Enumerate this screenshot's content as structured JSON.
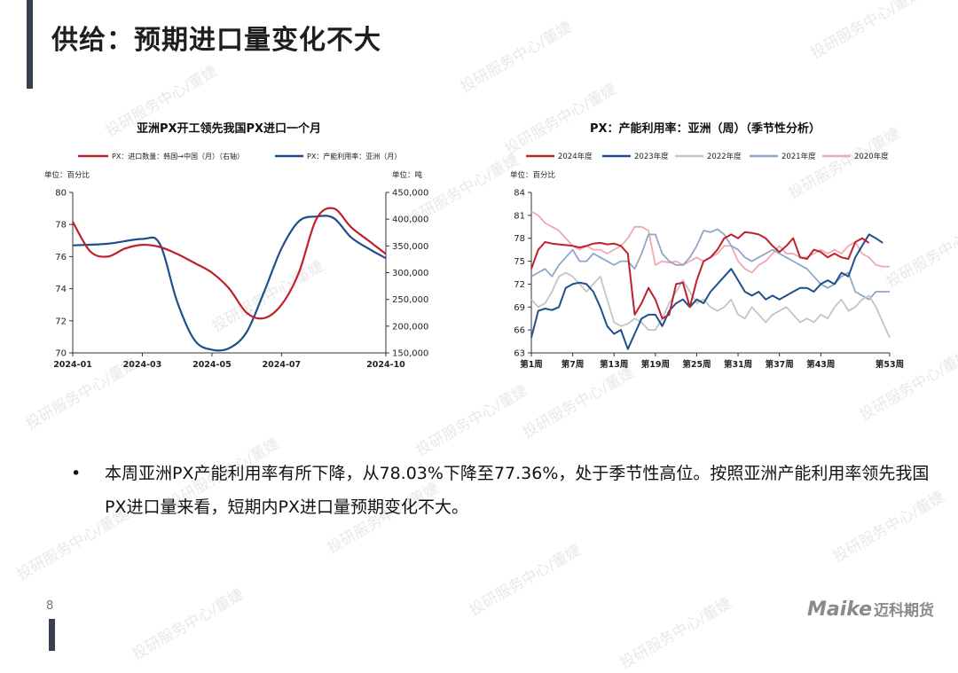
{
  "page": {
    "title": "供给：预期进口量变化不大",
    "page_number": "8",
    "bullet_symbol": "•",
    "bullet_text": "本周亚洲PX产能利用率有所下降，从78.03%下降至77.36%，处于季节性高位。按照亚洲产能利用率领先我国PX进口量来看，短期内PX进口量预期变化不大。",
    "logo": {
      "word": "Maike",
      "cn": "迈科期货"
    },
    "watermark": "投研服务中心/董婕"
  },
  "chart_data": [
    {
      "type": "line",
      "title": "亚洲PX开工领先我国PX进口一个月",
      "left_unit": "单位：百分比",
      "right_unit": "单位：吨",
      "x_ticks": [
        "2024-01",
        "2024-03",
        "2024-05",
        "2024-07",
        "2024-10"
      ],
      "x_range": [
        0,
        9
      ],
      "ylim_left": [
        70,
        80
      ],
      "ylim_right": [
        150000,
        450000
      ],
      "left_ticks": [
        70,
        72,
        74,
        76,
        78,
        80
      ],
      "right_ticks": [
        "150,000",
        "200,000",
        "250,000",
        "300,000",
        "350,000",
        "400,000",
        "450,000"
      ],
      "colors": {
        "import": "#c0202a",
        "utilization": "#1f4e8c"
      },
      "series": [
        {
          "name": "PX：进口数量：韩国→中国（月）（右轴）",
          "axis": "right",
          "color": "#c0202a",
          "x": [
            0,
            0.5,
            1,
            1.5,
            2,
            2.5,
            3,
            3.5,
            4,
            4.5,
            5,
            5.5,
            6,
            6.5,
            7,
            7.5,
            8,
            8.5,
            9
          ],
          "y": [
            395000,
            340000,
            330000,
            345000,
            352000,
            348000,
            335000,
            318000,
            300000,
            270000,
            225000,
            215000,
            240000,
            300000,
            400000,
            420000,
            385000,
            360000,
            335000
          ]
        },
        {
          "name": "PX：产能利用率：亚洲（月）",
          "axis": "left",
          "color": "#1f4e8c",
          "x": [
            0,
            1,
            2,
            2.5,
            3,
            3.5,
            4,
            4.5,
            5,
            5.5,
            6,
            6.5,
            7,
            7.5,
            8,
            8.5,
            9
          ],
          "y": [
            76.7,
            76.8,
            77.1,
            76.8,
            73.2,
            70.8,
            70.2,
            70.3,
            71.3,
            73.8,
            76.5,
            78.2,
            78.5,
            78.4,
            77.2,
            76.5,
            75.9
          ]
        }
      ]
    },
    {
      "type": "line",
      "title": "PX：产能利用率：亚洲（周）（季节性分析）",
      "left_unit": "单位：百分比",
      "x_ticks": [
        "第1周",
        "第7周",
        "第13周",
        "第19周",
        "第25周",
        "第31周",
        "第37周",
        "第43周",
        "第53周"
      ],
      "x_tick_weeks": [
        1,
        7,
        13,
        19,
        25,
        31,
        37,
        43,
        53
      ],
      "ylim": [
        63,
        84
      ],
      "y_ticks": [
        63,
        66,
        69,
        72,
        75,
        78,
        81,
        84
      ],
      "series": [
        {
          "name": "2024年度",
          "color": "#c0202a",
          "x": [
            1,
            2,
            3,
            4,
            5,
            7,
            8,
            9,
            10,
            11,
            12,
            13,
            14,
            15,
            16,
            17,
            18,
            19,
            20,
            21,
            22,
            23,
            24,
            25,
            26,
            27,
            28,
            29,
            30,
            31,
            32,
            33,
            34,
            35,
            36,
            37,
            38,
            39,
            40,
            41,
            42,
            43,
            44,
            45,
            46,
            47,
            48,
            49,
            50
          ],
          "y": [
            74.0,
            76.5,
            77.5,
            77.3,
            77.2,
            77.0,
            76.8,
            77.0,
            77.3,
            77.4,
            77.2,
            77.3,
            77.0,
            76.0,
            68.0,
            69.5,
            71.5,
            70.0,
            67.5,
            68.0,
            72.0,
            72.2,
            69.0,
            72.5,
            75.0,
            75.5,
            76.5,
            78.0,
            78.5,
            78.0,
            78.8,
            78.7,
            78.5,
            78.0,
            77.0,
            76.2,
            77.0,
            78.0,
            75.5,
            75.3,
            76.5,
            76.2,
            75.5,
            76.0,
            75.5,
            75.3,
            77.5,
            78.0,
            77.4
          ]
        },
        {
          "name": "2023年度",
          "color": "#1f4e8c",
          "x": [
            1,
            2,
            3,
            4,
            5,
            6,
            7,
            8,
            9,
            10,
            11,
            12,
            13,
            14,
            15,
            16,
            17,
            18,
            19,
            20,
            21,
            22,
            23,
            24,
            25,
            26,
            27,
            28,
            29,
            30,
            31,
            32,
            33,
            34,
            35,
            36,
            37,
            38,
            39,
            40,
            41,
            42,
            43,
            44,
            45,
            46,
            47,
            48,
            49,
            50,
            51,
            52
          ],
          "y": [
            65.0,
            68.5,
            68.8,
            68.6,
            69.0,
            71.5,
            72.0,
            72.2,
            72.0,
            71.0,
            69.0,
            66.5,
            65.5,
            66.0,
            63.5,
            65.5,
            67.5,
            68.0,
            68.0,
            66.5,
            68.5,
            69.5,
            70.0,
            69.0,
            70.0,
            69.5,
            71.0,
            72.0,
            73.0,
            74.0,
            72.5,
            71.0,
            70.5,
            71.0,
            70.0,
            70.5,
            70.0,
            70.5,
            71.0,
            71.5,
            71.5,
            71.0,
            72.0,
            72.5,
            72.0,
            73.5,
            73.0,
            75.5,
            77.0,
            78.5,
            78.0,
            77.4
          ]
        },
        {
          "name": "2022年度",
          "color": "#c4c4c4",
          "x": [
            1,
            2,
            3,
            4,
            5,
            6,
            7,
            8,
            9,
            10,
            11,
            12,
            13,
            14,
            15,
            16,
            17,
            18,
            19,
            20,
            21,
            22,
            23,
            24,
            25,
            26,
            27,
            28,
            29,
            30,
            31,
            32,
            33,
            34,
            35,
            36,
            37,
            38,
            39,
            40,
            41,
            42,
            43,
            44,
            45,
            46,
            47,
            48,
            49,
            50,
            51,
            52,
            53
          ],
          "y": [
            70.0,
            69.0,
            69.5,
            71.0,
            73.0,
            73.5,
            73.0,
            72.0,
            71.0,
            72.0,
            73.0,
            70.0,
            67.0,
            66.5,
            66.8,
            67.5,
            67.0,
            66.0,
            66.0,
            67.5,
            69.5,
            71.0,
            72.5,
            71.0,
            69.5,
            70.0,
            69.0,
            68.5,
            69.0,
            70.0,
            68.0,
            67.5,
            69.0,
            68.0,
            67.0,
            68.0,
            68.5,
            69.0,
            68.0,
            67.0,
            67.5,
            67.0,
            68.0,
            67.5,
            69.0,
            70.0,
            68.5,
            69.0,
            70.0,
            70.5,
            69.0,
            67.0,
            65.0
          ]
        },
        {
          "name": "2021年度",
          "color": "#8ea7c8",
          "x": [
            1,
            2,
            3,
            4,
            5,
            6,
            7,
            8,
            9,
            10,
            11,
            12,
            13,
            14,
            15,
            16,
            17,
            18,
            19,
            20,
            21,
            22,
            23,
            24,
            25,
            26,
            27,
            28,
            29,
            30,
            31,
            32,
            33,
            34,
            35,
            36,
            37,
            38,
            39,
            40,
            41,
            42,
            43,
            44,
            45,
            46,
            47,
            48,
            49,
            50,
            51,
            52,
            53
          ],
          "y": [
            73.0,
            73.5,
            74.0,
            73.0,
            74.5,
            75.5,
            76.5,
            75.0,
            75.0,
            76.0,
            75.5,
            75.0,
            74.5,
            75.0,
            75.0,
            74.0,
            76.0,
            78.5,
            78.5,
            76.0,
            75.0,
            74.5,
            74.5,
            75.5,
            77.0,
            79.0,
            78.8,
            79.2,
            78.5,
            77.0,
            76.5,
            75.5,
            75.0,
            75.5,
            76.0,
            76.5,
            76.0,
            75.5,
            75.0,
            74.5,
            74.0,
            73.0,
            72.0,
            71.5,
            72.0,
            73.0,
            73.5,
            71.0,
            70.5,
            70.0,
            71.0,
            71.0,
            71.0
          ]
        },
        {
          "name": "2020年度",
          "color": "#f0a8b4",
          "x": [
            1,
            2,
            3,
            4,
            5,
            6,
            7,
            8,
            9,
            10,
            11,
            12,
            13,
            14,
            15,
            16,
            17,
            18,
            19,
            20,
            21,
            22,
            23,
            24,
            25,
            26,
            27,
            28,
            29,
            30,
            31,
            32,
            33,
            34,
            35,
            36,
            37,
            38,
            39,
            40,
            41,
            42,
            43,
            44,
            45,
            46,
            47,
            48,
            49,
            50,
            51,
            52,
            53
          ],
          "y": [
            81.5,
            81.0,
            80.0,
            79.5,
            79.0,
            78.0,
            77.0,
            76.5,
            77.0,
            76.5,
            76.5,
            76.0,
            76.5,
            77.0,
            78.0,
            79.5,
            79.5,
            79.0,
            74.5,
            75.0,
            74.8,
            75.0,
            74.5,
            75.0,
            75.5,
            75.0,
            75.5,
            76.0,
            77.0,
            77.0,
            75.0,
            74.0,
            73.5,
            74.5,
            75.0,
            76.0,
            77.0,
            76.0,
            76.0,
            75.5,
            75.5,
            76.0,
            76.5,
            76.0,
            76.5,
            76.0,
            77.0,
            77.5,
            76.0,
            75.5,
            74.5,
            74.3,
            74.3
          ]
        }
      ]
    }
  ]
}
